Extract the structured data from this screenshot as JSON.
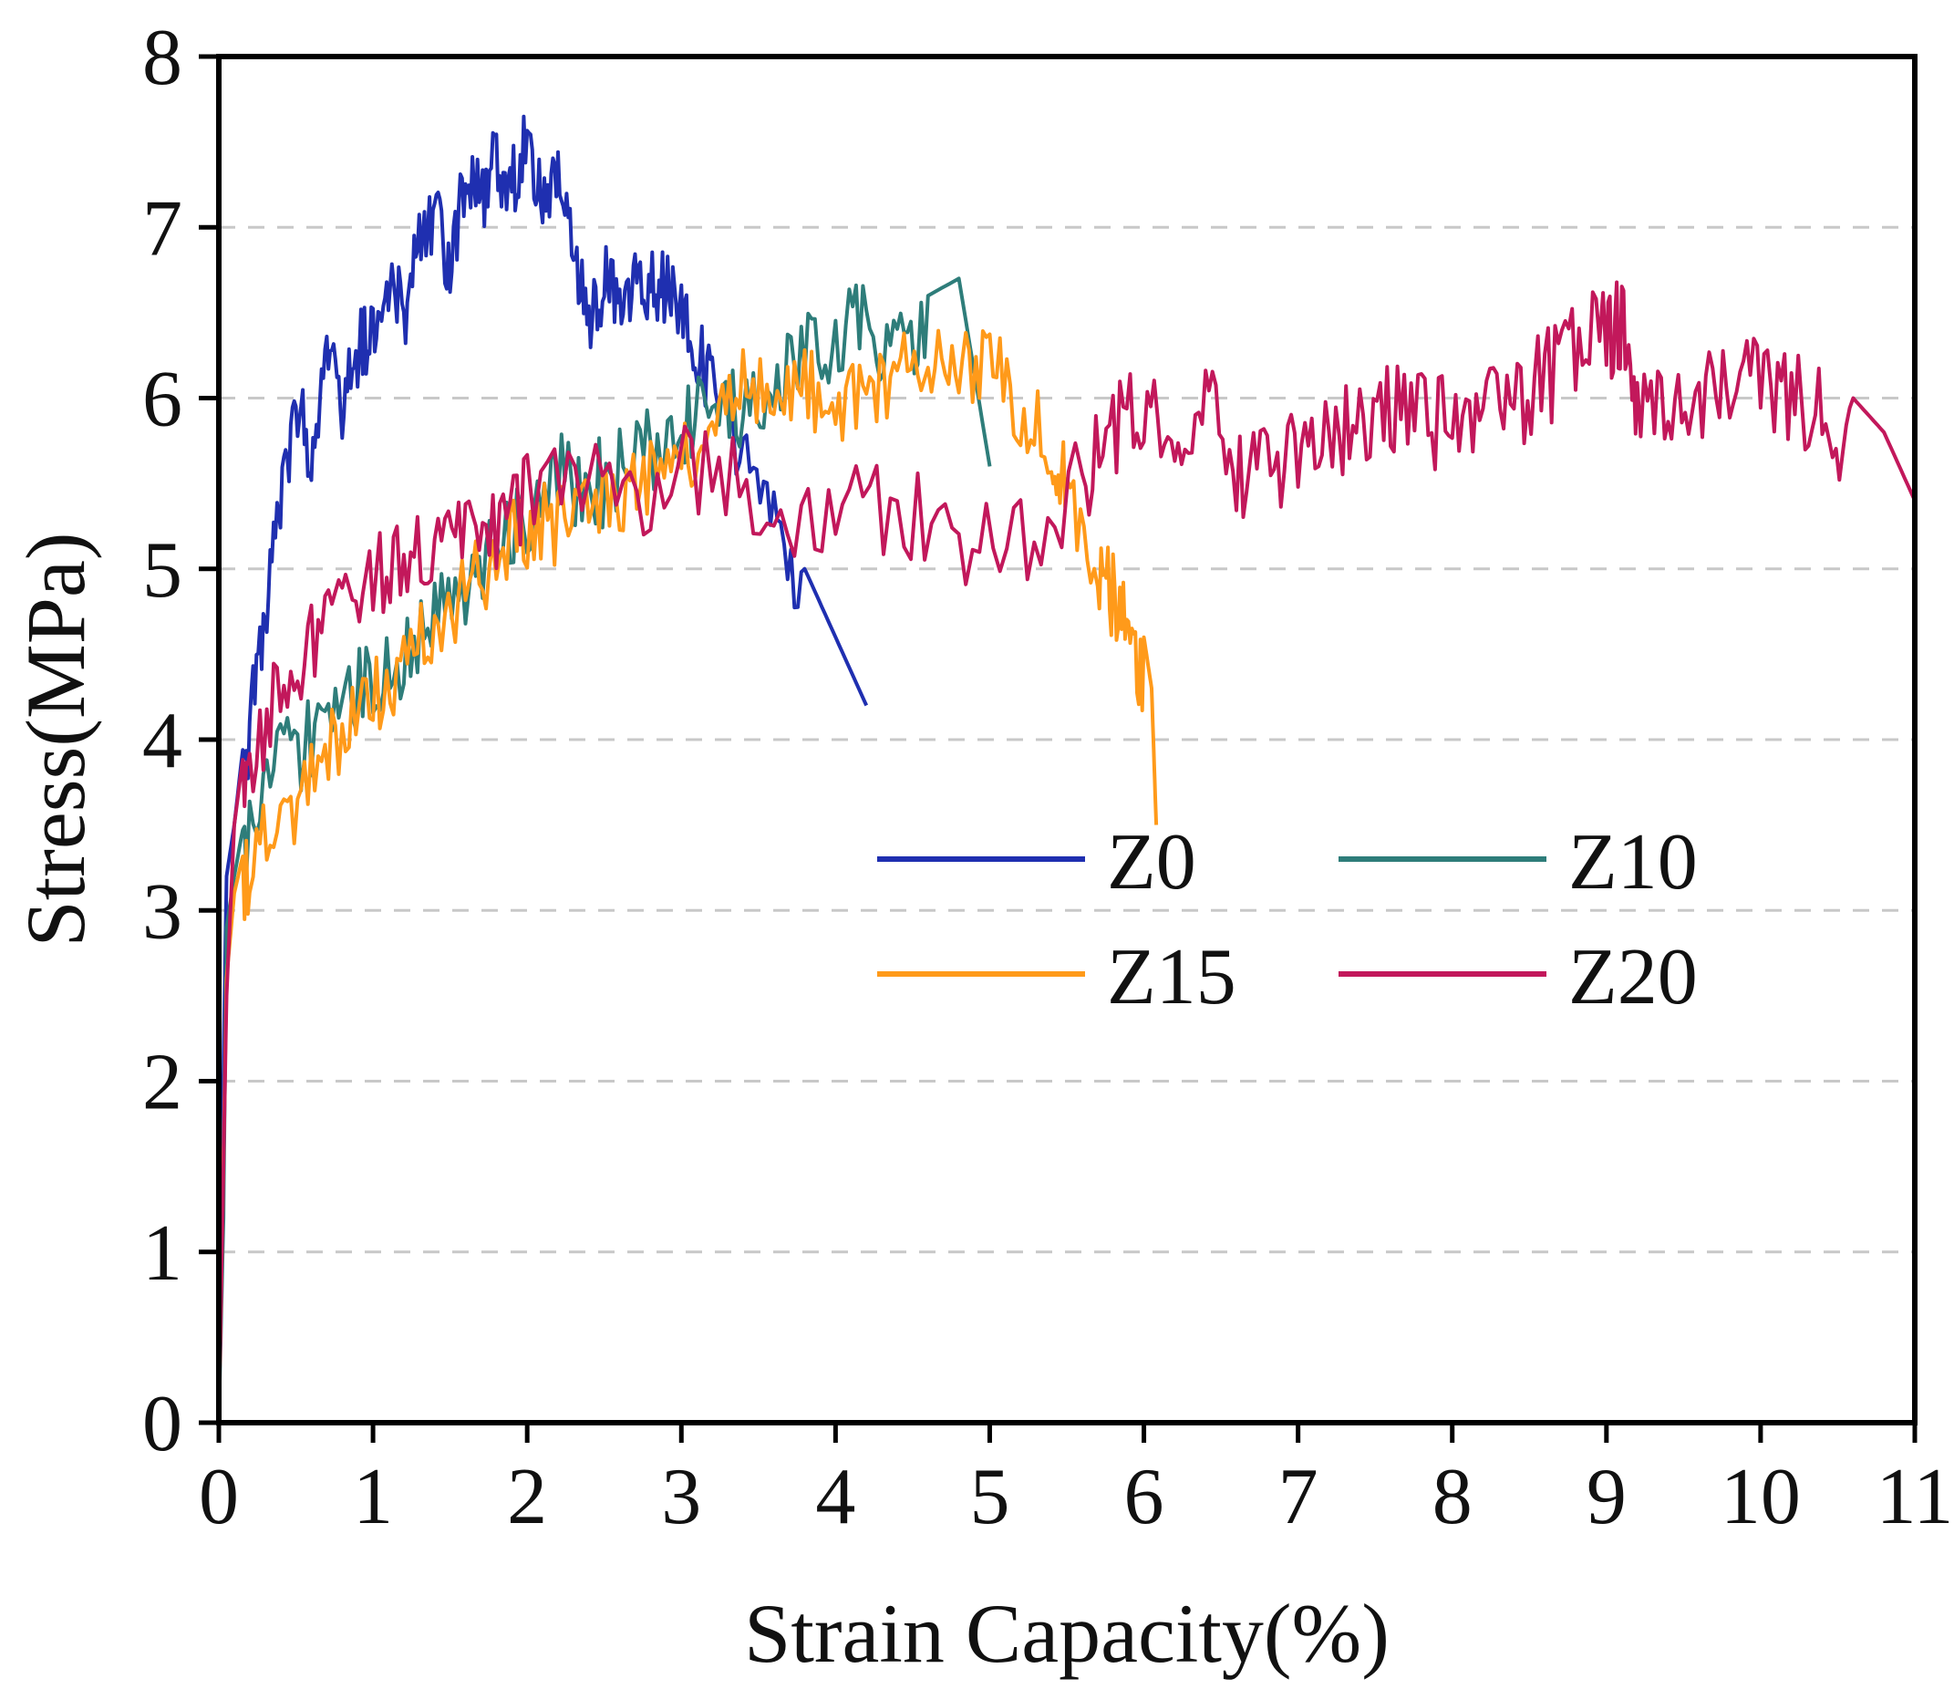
{
  "chart_data": {
    "type": "line",
    "title": "",
    "xlabel": "Strain Capacity(%)",
    "ylabel": "Stress(MPa)",
    "xlim": [
      0,
      11
    ],
    "ylim": [
      0,
      8
    ],
    "xticks": [
      "0",
      "1",
      "2",
      "3",
      "4",
      "5",
      "6",
      "7",
      "8",
      "9",
      "10",
      "11"
    ],
    "yticks": [
      "0",
      "1",
      "2",
      "3",
      "4",
      "5",
      "6",
      "7",
      "8"
    ],
    "grid": "horizontal-dashed",
    "legend_position": "center-right",
    "series": [
      {
        "name": "Z0",
        "color": "#1f2fb0",
        "points": [
          [
            0,
            0
          ],
          [
            0.02,
            1.5
          ],
          [
            0.05,
            3.2
          ],
          [
            0.1,
            3.5
          ],
          [
            0.2,
            4.3
          ],
          [
            0.3,
            5.0
          ],
          [
            0.4,
            5.6
          ],
          [
            0.5,
            6.2
          ],
          [
            0.6,
            5.9
          ],
          [
            0.7,
            6.6
          ],
          [
            0.8,
            6.2
          ],
          [
            0.9,
            6.5
          ],
          [
            1.0,
            6.6
          ],
          [
            1.1,
            6.9
          ],
          [
            1.2,
            6.7
          ],
          [
            1.3,
            7.1
          ],
          [
            1.4,
            7.3
          ],
          [
            1.5,
            7.0
          ],
          [
            1.6,
            7.5
          ],
          [
            1.7,
            7.4
          ],
          [
            1.8,
            7.6
          ],
          [
            1.9,
            7.5
          ],
          [
            2.0,
            7.7
          ],
          [
            2.1,
            7.4
          ],
          [
            2.2,
            7.5
          ],
          [
            2.3,
            7.2
          ],
          [
            2.4,
            6.6
          ],
          [
            2.5,
            6.9
          ],
          [
            2.6,
            6.8
          ],
          [
            2.7,
            6.9
          ],
          [
            2.8,
            6.9
          ],
          [
            2.9,
            6.85
          ],
          [
            3.0,
            6.75
          ],
          [
            3.1,
            6.5
          ],
          [
            3.2,
            6.3
          ],
          [
            3.4,
            5.9
          ],
          [
            3.6,
            5.5
          ],
          [
            3.8,
            5.0
          ],
          [
            4.0,
            4.6
          ],
          [
            4.2,
            4.2
          ]
        ]
      },
      {
        "name": "Z10",
        "color": "#2e7d7a",
        "points": [
          [
            0,
            0
          ],
          [
            0.03,
            1.2
          ],
          [
            0.05,
            2.9
          ],
          [
            0.1,
            3.2
          ],
          [
            0.2,
            3.7
          ],
          [
            0.4,
            4.1
          ],
          [
            0.6,
            4.3
          ],
          [
            0.8,
            4.5
          ],
          [
            1.0,
            4.6
          ],
          [
            1.2,
            4.8
          ],
          [
            1.4,
            5.0
          ],
          [
            1.6,
            5.1
          ],
          [
            1.8,
            5.4
          ],
          [
            2.0,
            5.6
          ],
          [
            2.2,
            5.8
          ],
          [
            2.4,
            5.7
          ],
          [
            2.6,
            5.9
          ],
          [
            2.8,
            6.0
          ],
          [
            3.0,
            6.1
          ],
          [
            3.2,
            6.2
          ],
          [
            3.4,
            6.2
          ],
          [
            3.6,
            6.4
          ],
          [
            3.8,
            6.5
          ],
          [
            4.0,
            6.6
          ],
          [
            4.2,
            6.7
          ],
          [
            4.4,
            6.5
          ],
          [
            4.6,
            6.6
          ],
          [
            4.8,
            6.7
          ],
          [
            5.0,
            5.6
          ]
        ]
      },
      {
        "name": "Z15",
        "color": "#ff9a1a",
        "points": [
          [
            0,
            0
          ],
          [
            0.05,
            2.6
          ],
          [
            0.1,
            3.1
          ],
          [
            0.2,
            3.5
          ],
          [
            0.4,
            3.8
          ],
          [
            0.6,
            4.0
          ],
          [
            0.8,
            4.3
          ],
          [
            1.0,
            4.5
          ],
          [
            1.2,
            4.7
          ],
          [
            1.4,
            4.9
          ],
          [
            1.6,
            5.1
          ],
          [
            1.8,
            5.3
          ],
          [
            2.0,
            5.5
          ],
          [
            2.2,
            5.5
          ],
          [
            2.4,
            5.6
          ],
          [
            2.6,
            5.7
          ],
          [
            2.8,
            5.8
          ],
          [
            3.0,
            5.9
          ],
          [
            3.2,
            6.1
          ],
          [
            3.4,
            6.3
          ],
          [
            3.6,
            6.4
          ],
          [
            3.8,
            6.3
          ],
          [
            4.0,
            6.2
          ],
          [
            4.2,
            6.3
          ],
          [
            4.4,
            6.4
          ],
          [
            4.6,
            6.5
          ],
          [
            4.8,
            6.4
          ],
          [
            5.0,
            6.5
          ],
          [
            5.2,
            6.2
          ],
          [
            5.4,
            6.0
          ],
          [
            5.5,
            5.7
          ],
          [
            5.7,
            5.2
          ],
          [
            5.8,
            5.1
          ],
          [
            5.9,
            4.9
          ],
          [
            6.0,
            4.6
          ],
          [
            6.05,
            4.3
          ],
          [
            6.08,
            3.5
          ]
        ]
      },
      {
        "name": "Z20",
        "color": "#c2185b",
        "points": [
          [
            0,
            0
          ],
          [
            0.05,
            2.5
          ],
          [
            0.1,
            3.5
          ],
          [
            0.2,
            4.2
          ],
          [
            0.4,
            4.6
          ],
          [
            0.6,
            4.9
          ],
          [
            0.8,
            5.1
          ],
          [
            1.0,
            5.2
          ],
          [
            1.2,
            5.4
          ],
          [
            1.4,
            5.5
          ],
          [
            1.6,
            5.6
          ],
          [
            1.8,
            5.6
          ],
          [
            2.0,
            5.7
          ],
          [
            2.4,
            5.8
          ],
          [
            2.8,
            5.8
          ],
          [
            3.2,
            5.9
          ],
          [
            3.6,
            5.7
          ],
          [
            4.0,
            5.6
          ],
          [
            4.4,
            5.7
          ],
          [
            4.8,
            5.5
          ],
          [
            5.2,
            5.5
          ],
          [
            5.6,
            5.8
          ],
          [
            5.8,
            6.1
          ],
          [
            6.0,
            6.2
          ],
          [
            6.2,
            6.1
          ],
          [
            6.4,
            6.4
          ],
          [
            6.6,
            5.8
          ],
          [
            6.8,
            5.9
          ],
          [
            7.0,
            6.0
          ],
          [
            7.2,
            6.1
          ],
          [
            7.4,
            6.2
          ],
          [
            7.6,
            6.2
          ],
          [
            7.8,
            6.2
          ],
          [
            8.0,
            6.1
          ],
          [
            8.2,
            6.2
          ],
          [
            8.4,
            6.3
          ],
          [
            8.6,
            6.4
          ],
          [
            8.8,
            6.6
          ],
          [
            9.0,
            6.7
          ],
          [
            9.1,
            6.7
          ],
          [
            9.2,
            6.3
          ],
          [
            9.4,
            6.2
          ],
          [
            9.6,
            6.3
          ],
          [
            9.8,
            6.4
          ],
          [
            10.0,
            6.35
          ],
          [
            10.2,
            6.3
          ],
          [
            10.4,
            6.2
          ],
          [
            10.6,
            6.0
          ],
          [
            10.8,
            5.8
          ],
          [
            11.0,
            5.4
          ]
        ]
      }
    ]
  }
}
